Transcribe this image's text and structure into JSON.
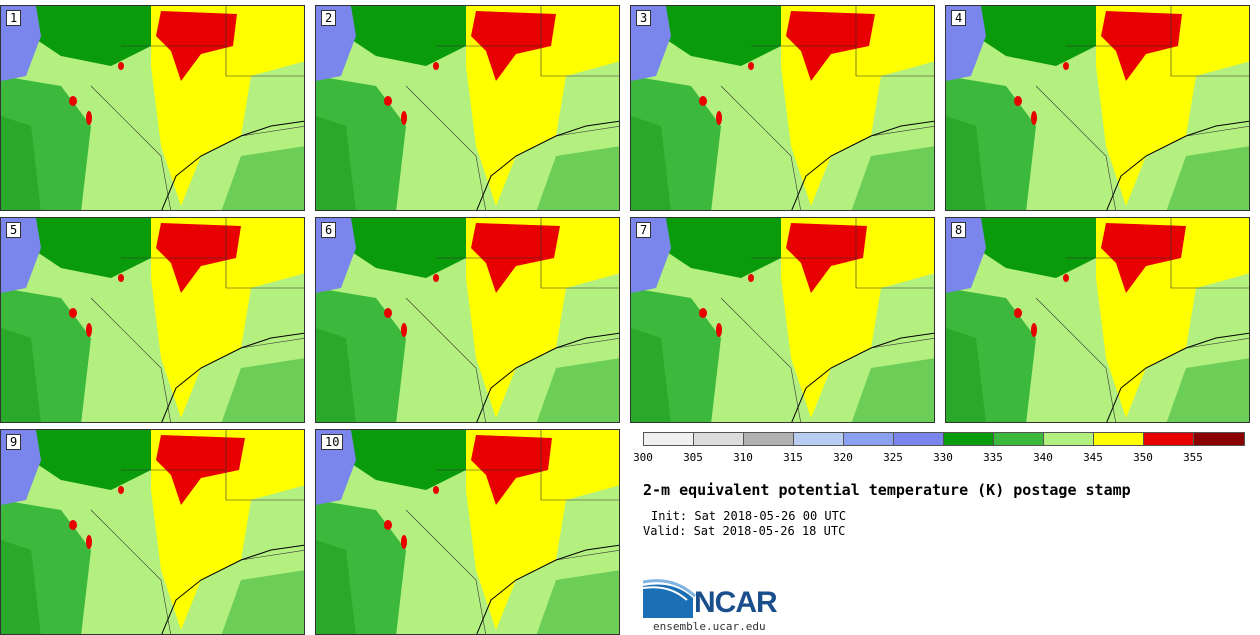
{
  "panels": [
    {
      "label": "1"
    },
    {
      "label": "2"
    },
    {
      "label": "3"
    },
    {
      "label": "4"
    },
    {
      "label": "5"
    },
    {
      "label": "6"
    },
    {
      "label": "7"
    },
    {
      "label": "8"
    },
    {
      "label": "9"
    },
    {
      "label": "10"
    }
  ],
  "colorbar": {
    "colors": [
      "#f0f0f0",
      "#dcdcdc",
      "#b0b0b0",
      "#b8ccf0",
      "#8aa0f0",
      "#7b86ec",
      "#0a9b0a",
      "#3cb83c",
      "#b4f080",
      "#ffff00",
      "#e80000",
      "#8a0000"
    ],
    "ticks": [
      "300",
      "305",
      "310",
      "315",
      "320",
      "325",
      "330",
      "335",
      "340",
      "345",
      "350",
      "355"
    ]
  },
  "title": "2-m equivalent potential temperature (K) postage stamp",
  "init": "Init: Sat 2018-05-26 00 UTC",
  "valid": "Valid: Sat 2018-05-26 18 UTC",
  "logo": {
    "text": "NCAR"
  },
  "site": "ensemble.ucar.edu"
}
